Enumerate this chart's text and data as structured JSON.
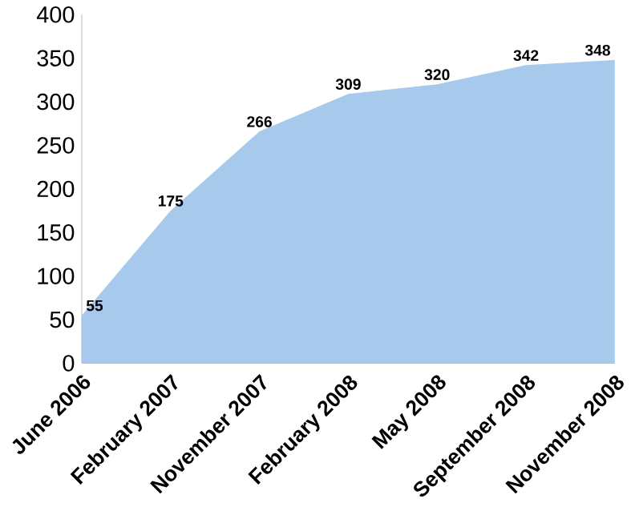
{
  "chart_data": {
    "type": "area",
    "categories": [
      "June 2006",
      "February 2007",
      "November 2007",
      "February 2008",
      "May 2008",
      "September 2008",
      "November 2008"
    ],
    "series": [
      {
        "color": "#a6c9ec",
        "values": [
          55,
          175,
          266,
          309,
          320,
          342,
          348
        ]
      }
    ],
    "ylim": [
      0,
      400
    ],
    "yticks": [
      0,
      50,
      100,
      150,
      200,
      250,
      300,
      350,
      400
    ],
    "grid": false,
    "data_labels": true
  }
}
